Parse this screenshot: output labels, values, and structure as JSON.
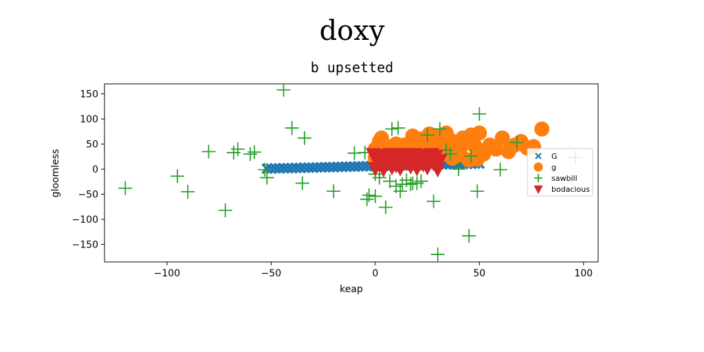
{
  "figure": {
    "suptitle": "doxy",
    "title": "b upsetted"
  },
  "chart_data": {
    "type": "scatter",
    "title": "b upsetted",
    "xlabel": "keap",
    "ylabel": "gloomless",
    "xlim": [
      -130,
      107
    ],
    "ylim": [
      -185,
      170
    ],
    "xticks": [
      -100,
      -50,
      0,
      50,
      100
    ],
    "yticks": [
      -150,
      -100,
      -50,
      0,
      50,
      100,
      150
    ],
    "grid": false,
    "legend_position": "center-right",
    "series": [
      {
        "name": "G",
        "marker": "x-filled",
        "color": "#1f77b4",
        "x": [
          -52,
          -50,
          -48,
          -46,
          -44,
          -42,
          -40,
          -38,
          -36,
          -34,
          -32,
          -30,
          -28,
          -26,
          -24,
          -22,
          -20,
          -18,
          -16,
          -14,
          -12,
          -10,
          -8,
          -6,
          -4,
          -2,
          0,
          2,
          4,
          6,
          8,
          10,
          12,
          14,
          16,
          18,
          20,
          22,
          24,
          26,
          28,
          30,
          32,
          34,
          36,
          38,
          40,
          42,
          44,
          46,
          48,
          50
        ],
        "y": [
          1,
          1,
          1.5,
          1.5,
          2,
          2,
          2,
          2.5,
          2.5,
          3,
          3,
          3,
          3.5,
          3.5,
          4,
          4,
          4,
          4.5,
          4.5,
          5,
          5,
          5,
          5.5,
          5.5,
          6,
          6,
          6,
          6.5,
          6.5,
          7,
          7,
          7,
          7.5,
          7.5,
          8,
          8,
          8,
          8.5,
          8.5,
          9,
          9,
          9,
          9.5,
          9.5,
          10,
          10,
          10,
          10.5,
          10.5,
          11,
          11,
          11
        ]
      },
      {
        "name": "g",
        "marker": "circle",
        "color": "#ff7f0e",
        "x": [
          0,
          2,
          3,
          5,
          8,
          10,
          12,
          14,
          16,
          18,
          20,
          22,
          24,
          26,
          28,
          30,
          32,
          34,
          36,
          38,
          40,
          42,
          44,
          46,
          48,
          50,
          52,
          55,
          58,
          61,
          64,
          67,
          70,
          73,
          76,
          80,
          0,
          4,
          9,
          13,
          17,
          21,
          25,
          29,
          33,
          37,
          41,
          45,
          49
        ],
        "y": [
          40,
          55,
          62,
          38,
          45,
          50,
          35,
          48,
          40,
          66,
          52,
          60,
          45,
          70,
          55,
          65,
          48,
          72,
          58,
          42,
          38,
          62,
          52,
          68,
          45,
          72,
          30,
          48,
          40,
          62,
          35,
          48,
          55,
          42,
          45,
          80,
          22,
          25,
          32,
          28,
          30,
          26,
          35,
          24,
          30,
          22,
          28,
          18,
          20
        ]
      },
      {
        "name": "sawbill",
        "marker": "plus",
        "color": "#2ca02c",
        "x": [
          -120,
          -95,
          -90,
          -80,
          -72,
          -68,
          -66,
          -60,
          -58,
          -53,
          -52,
          -44,
          -40,
          -35,
          -34,
          -20,
          -10,
          -5,
          -4,
          -3,
          0,
          0,
          2,
          5,
          7,
          8,
          10,
          11,
          12,
          13,
          15,
          17,
          18,
          20,
          22,
          25,
          28,
          30,
          31,
          34,
          36,
          40,
          45,
          46,
          49,
          50,
          60,
          68,
          96
        ],
        "y": [
          -38,
          -14,
          -45,
          35,
          -82,
          33,
          40,
          30,
          34,
          -1,
          -17,
          158,
          82,
          -28,
          62,
          -44,
          32,
          33,
          -60,
          -52,
          -54,
          -10,
          -17,
          -76,
          -24,
          80,
          -34,
          82,
          -44,
          -30,
          -22,
          -30,
          -28,
          -28,
          -24,
          68,
          -64,
          -170,
          80,
          38,
          30,
          0,
          -133,
          26,
          -44,
          110,
          -1,
          53,
          23
        ]
      },
      {
        "name": "bodacious",
        "marker": "triangle-down",
        "color": "#d62728",
        "x": [
          -1,
          0,
          1,
          2,
          3,
          4,
          5,
          6,
          7,
          8,
          9,
          10,
          11,
          12,
          13,
          14,
          15,
          16,
          17,
          18,
          19,
          20,
          21,
          22,
          23,
          24,
          25,
          26,
          27,
          28,
          29,
          30,
          31
        ],
        "y": [
          30,
          2,
          20,
          10,
          28,
          0,
          24,
          14,
          30,
          4,
          22,
          8,
          28,
          2,
          18,
          30,
          12,
          26,
          6,
          22,
          30,
          2,
          16,
          28,
          10,
          24,
          4,
          20,
          30,
          12,
          26,
          0,
          18
        ]
      }
    ]
  }
}
